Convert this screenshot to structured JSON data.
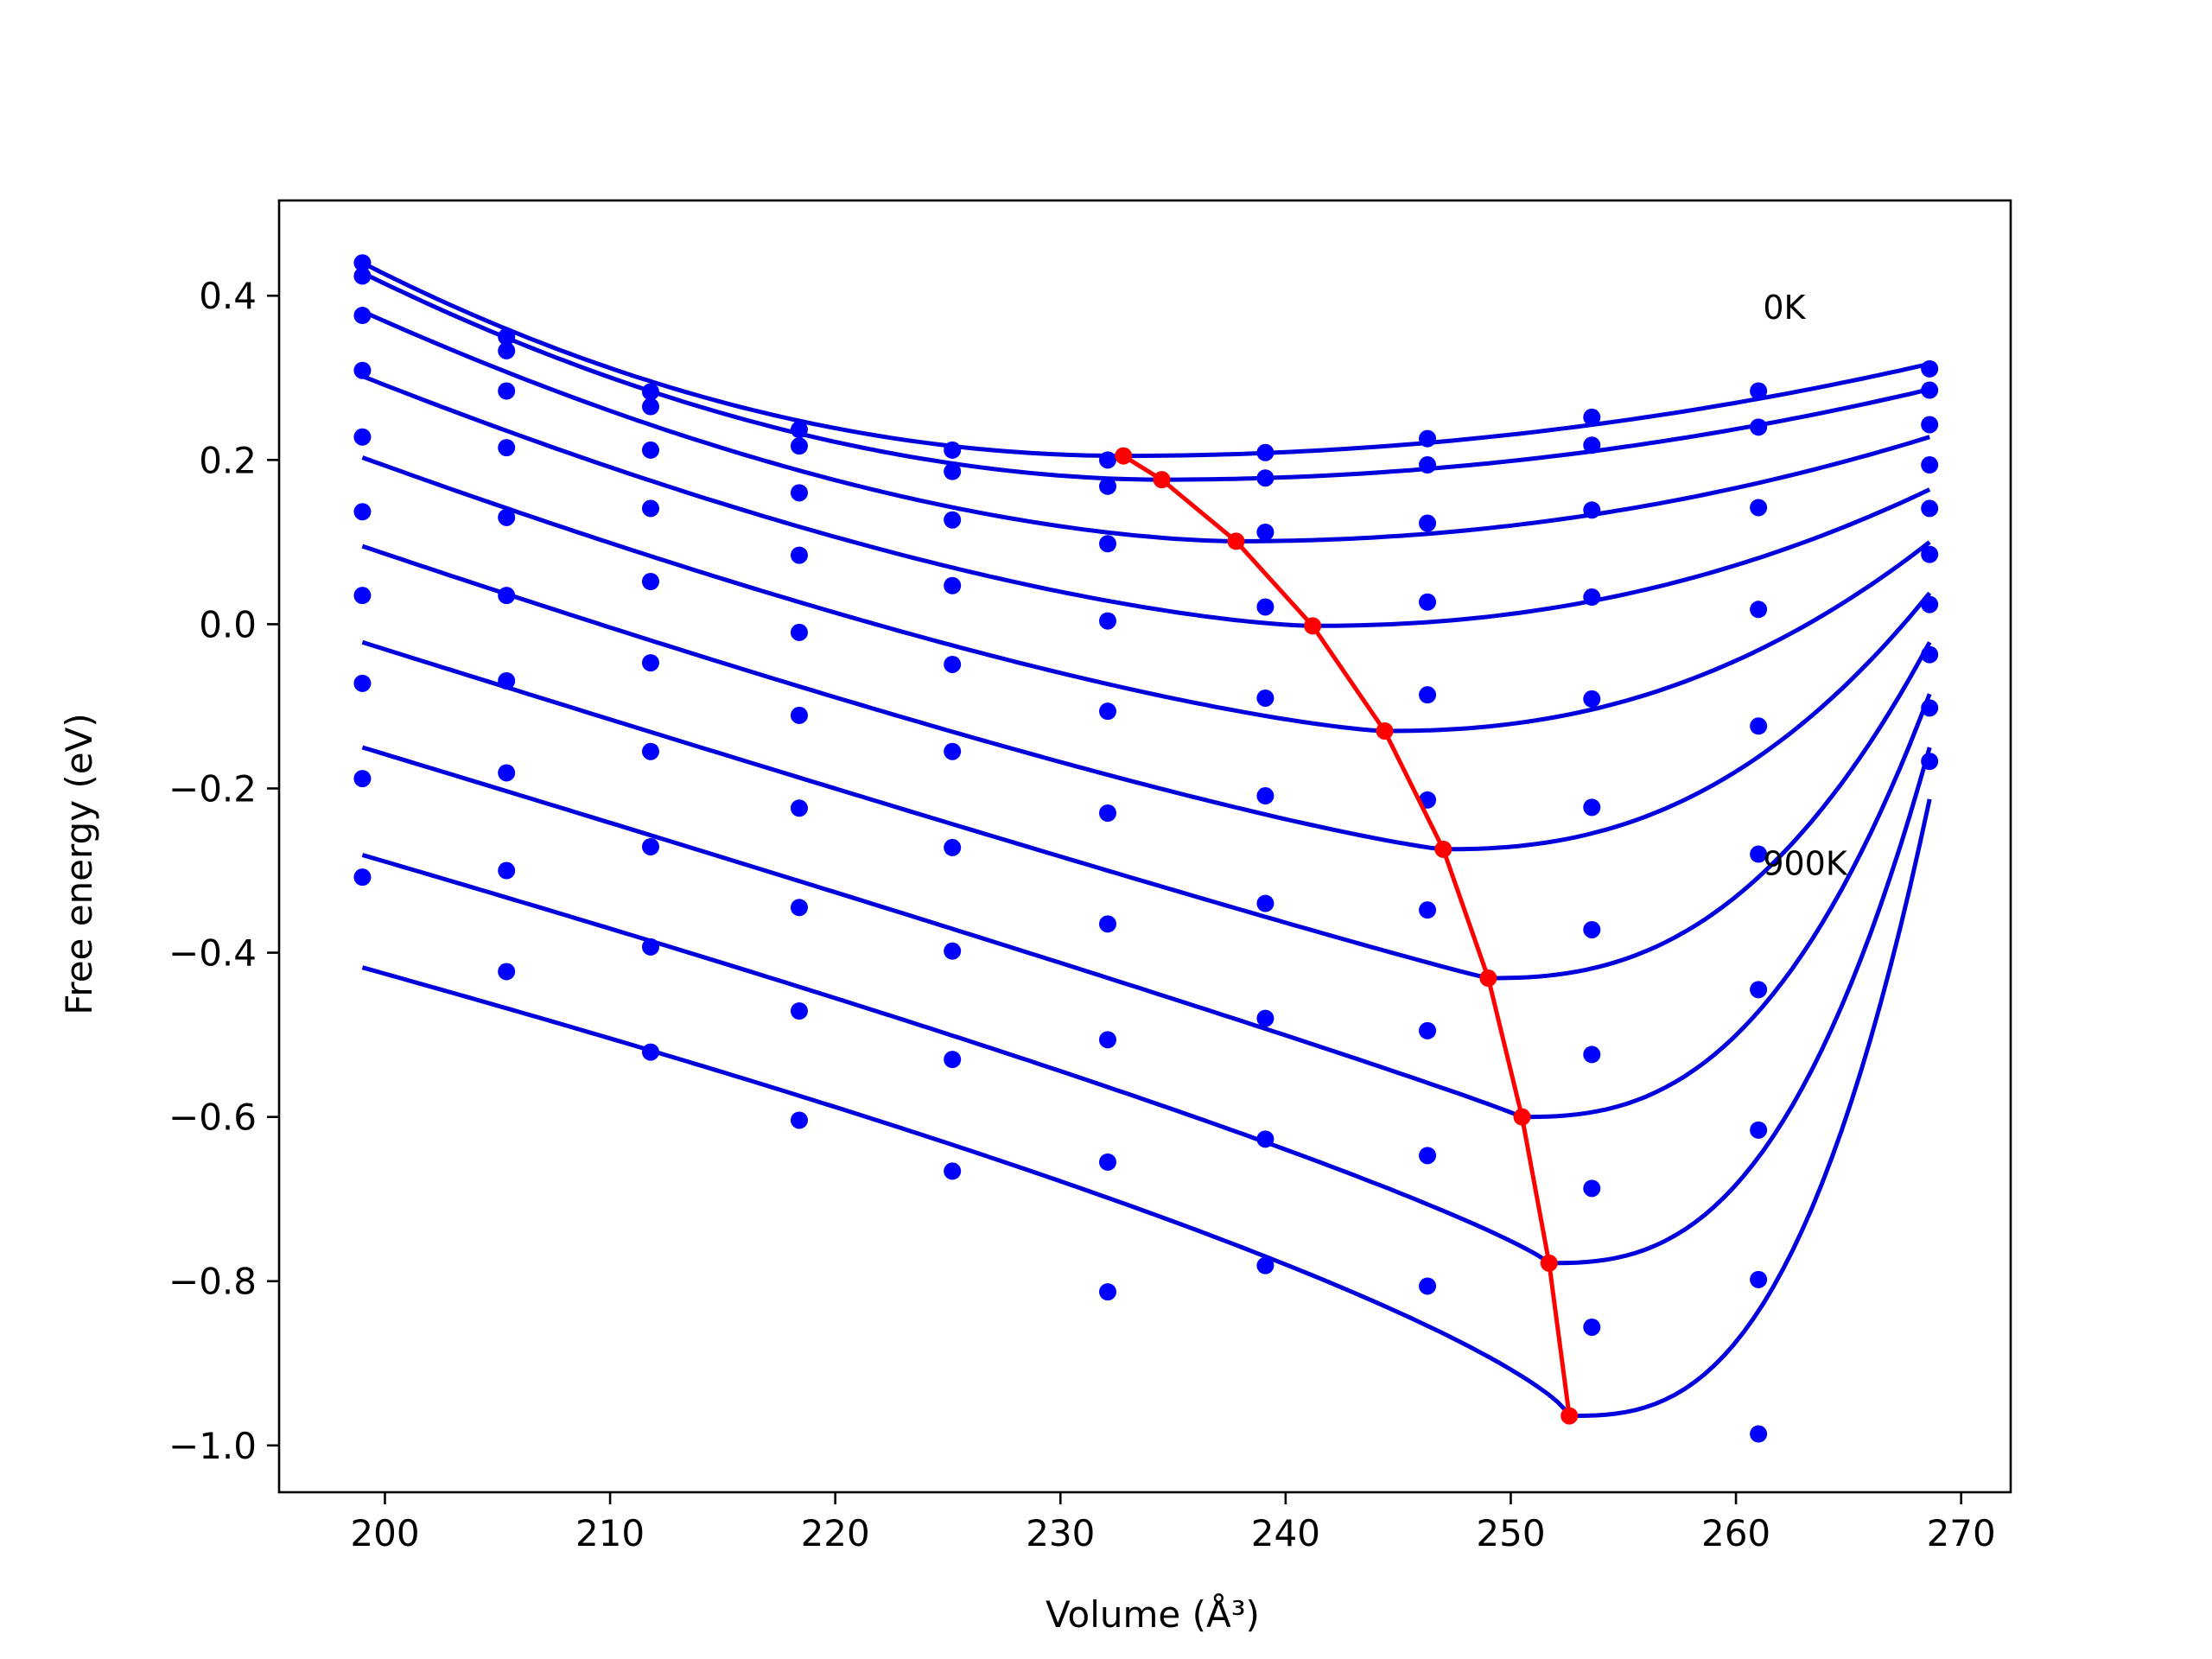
{
  "chart_data": {
    "type": "scatter",
    "title": "",
    "xlabel": "Volume (Å³)",
    "ylabel": "Free energy (eV)",
    "xlim": [
      195.3,
      272.2
    ],
    "ylim": [
      -1.057,
      0.516
    ],
    "x_ticks": [
      200,
      210,
      220,
      230,
      240,
      250,
      260,
      270
    ],
    "y_ticks": [
      0.4,
      0.2,
      0.0,
      -0.2,
      -0.4,
      -0.6,
      -0.8,
      -1.0
    ],
    "x_tick_labels": [
      "200",
      "210",
      "220",
      "230",
      "240",
      "250",
      "260",
      "270"
    ],
    "y_tick_labels": [
      "0.4",
      "0.2",
      "0.0",
      "−0.2",
      "−0.4",
      "−0.6",
      "−0.8",
      "−1.0"
    ],
    "grid": false,
    "legend": null,
    "colors": {
      "points": "#0000ff",
      "fits": "#0000dd",
      "equilibrium": "#ff0000"
    },
    "annotations": [
      {
        "text": "0K",
        "x": 261.2,
        "y": 0.372
      },
      {
        "text": "900K",
        "x": 261.2,
        "y": -0.305
      }
    ],
    "x": [
      199,
      205.4,
      211.8,
      218.4,
      225.2,
      232.1,
      239.1,
      246.3,
      253.6,
      261.0,
      268.6
    ],
    "series": [
      {
        "y": [
          0.44,
          0.35,
          0.283,
          0.237,
          0.212,
          0.2,
          0.209,
          0.226,
          0.252,
          0.284,
          0.311
        ],
        "fit": {
          "min_x": 232.8,
          "min_y": 0.205,
          "left": 0.44,
          "right": 0.317,
          "p": 2.0,
          "q": 2.0
        }
      },
      {
        "y": [
          0.424,
          0.333,
          0.265,
          0.217,
          0.186,
          0.168,
          0.178,
          0.194,
          0.218,
          0.24,
          0.285
        ],
        "fit": {
          "min_x": 234.5,
          "min_y": 0.176,
          "left": 0.428,
          "right": 0.286,
          "p": 1.9,
          "q": 2.0
        }
      },
      {
        "y": [
          0.376,
          0.284,
          0.212,
          0.16,
          0.127,
          0.098,
          0.112,
          0.123,
          0.139,
          0.142,
          0.243
        ],
        "fit": {
          "min_x": 237.8,
          "min_y": 0.101,
          "left": 0.381,
          "right": 0.228,
          "p": 1.7,
          "q": 2.05
        }
      },
      {
        "y": [
          0.309,
          0.215,
          0.141,
          0.084,
          0.047,
          0.004,
          0.021,
          0.027,
          0.033,
          0.018,
          0.194
        ],
        "fit": {
          "min_x": 241.2,
          "min_y": -0.002,
          "left": 0.302,
          "right": 0.164,
          "p": 1.5,
          "q": 2.15
        }
      },
      {
        "y": [
          0.228,
          0.13,
          0.052,
          -0.01,
          -0.049,
          -0.106,
          -0.09,
          -0.086,
          -0.091,
          -0.124,
          0.141
        ],
        "fit": {
          "min_x": 244.4,
          "min_y": -0.13,
          "left": 0.203,
          "right": 0.1,
          "p": 1.35,
          "q": 2.25
        }
      },
      {
        "y": [
          0.137,
          0.035,
          -0.047,
          -0.111,
          -0.155,
          -0.23,
          -0.209,
          -0.214,
          -0.223,
          -0.28,
          0.085
        ],
        "fit": {
          "min_x": 247.0,
          "min_y": -0.274,
          "left": 0.095,
          "right": 0.038,
          "p": 1.2,
          "q": 2.35
        }
      },
      {
        "y": [
          0.035,
          -0.069,
          -0.155,
          -0.224,
          -0.272,
          -0.365,
          -0.34,
          -0.348,
          -0.372,
          -0.445,
          0.024
        ],
        "fit": {
          "min_x": 249.0,
          "min_y": -0.431,
          "left": -0.022,
          "right": -0.022,
          "p": 1.05,
          "q": 2.45
        }
      },
      {
        "y": [
          -0.072,
          -0.181,
          -0.271,
          -0.345,
          -0.398,
          -0.506,
          -0.48,
          -0.495,
          -0.524,
          -0.616,
          -0.037
        ],
        "fit": {
          "min_x": 250.5,
          "min_y": -0.6,
          "left": -0.15,
          "right": -0.085,
          "p": 0.95,
          "q": 2.55
        }
      },
      {
        "y": [
          -0.188,
          -0.3,
          -0.393,
          -0.471,
          -0.53,
          -0.655,
          -0.627,
          -0.647,
          -0.687,
          -0.798,
          -0.102
        ],
        "fit": {
          "min_x": 251.7,
          "min_y": -0.778,
          "left": -0.281,
          "right": -0.15,
          "p": 0.85,
          "q": 2.65
        }
      },
      {
        "y": [
          -0.308,
          -0.423,
          -0.521,
          -0.604,
          -0.666,
          -0.813,
          -0.781,
          -0.806,
          -0.856,
          -0.986,
          -0.167
        ],
        "fit": {
          "min_x": 252.6,
          "min_y": -0.964,
          "left": -0.418,
          "right": -0.213,
          "p": 0.75,
          "q": 2.75
        }
      }
    ],
    "equilibrium_curve": {
      "x": [
        232.8,
        234.5,
        237.8,
        241.2,
        244.4,
        247.0,
        249.0,
        250.5,
        251.7,
        252.6
      ],
      "y": [
        0.205,
        0.176,
        0.101,
        -0.002,
        -0.13,
        -0.274,
        -0.431,
        -0.6,
        -0.778,
        -0.964
      ]
    }
  }
}
